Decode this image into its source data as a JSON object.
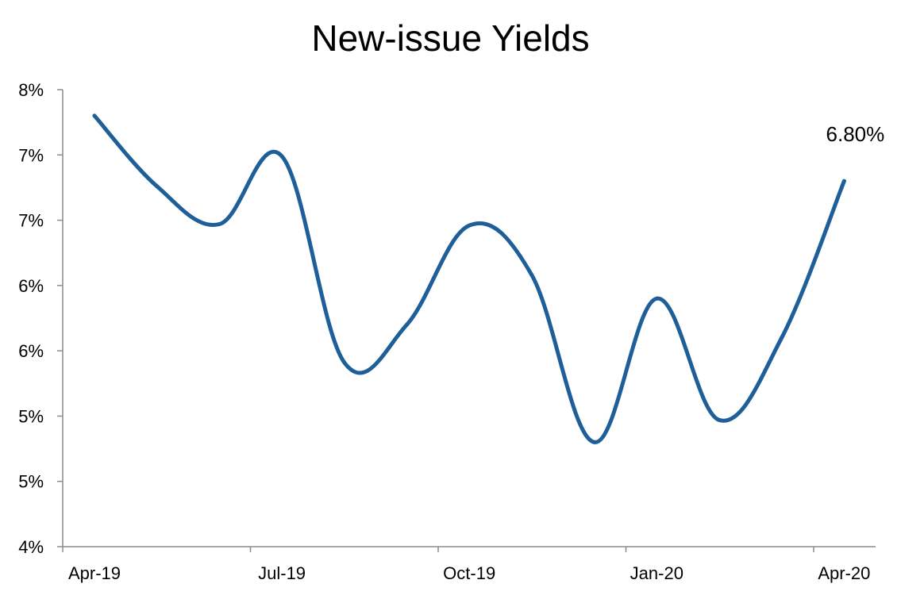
{
  "chart_data": {
    "type": "line",
    "title": "New-issue Yields",
    "xlabel": "",
    "ylabel": "",
    "x_tick_labels": [
      "Apr-19",
      "Jul-19",
      "Oct-19",
      "Jan-20",
      "Apr-20"
    ],
    "y_tick_labels": [
      "8%",
      "7%",
      "7%",
      "6%",
      "6%",
      "5%",
      "5%",
      "4%"
    ],
    "ylim": [
      4.0,
      7.5
    ],
    "x": [
      "Apr-19",
      "May-19",
      "Jun-19",
      "Jul-19",
      "Aug-19",
      "Sep-19",
      "Oct-19",
      "Nov-19",
      "Dec-19",
      "Jan-20",
      "Feb-20",
      "Mar-20",
      "Apr-20"
    ],
    "series": [
      {
        "values": [
          7.3,
          6.76,
          6.47,
          6.99,
          5.41,
          5.7,
          6.46,
          6.08,
          4.8,
          5.9,
          4.97,
          5.6,
          6.8
        ]
      }
    ],
    "annotations": [
      {
        "text": "6.80%",
        "point": "Apr-20"
      }
    ],
    "series_color": "#1f5f99",
    "grid": false,
    "legend": "none"
  }
}
